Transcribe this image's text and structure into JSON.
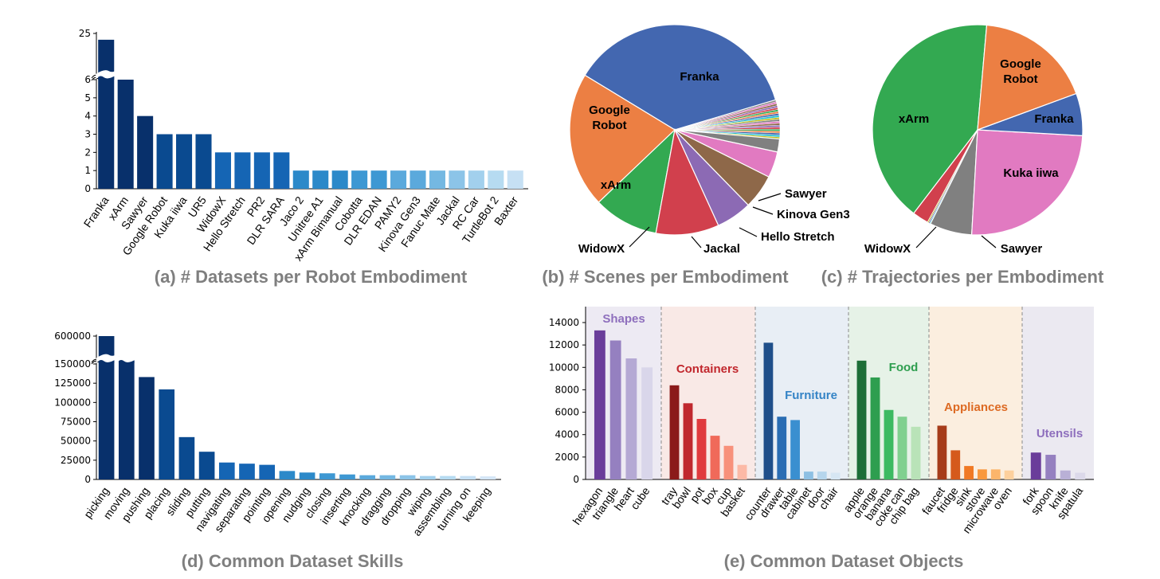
{
  "chart_data": [
    {
      "id": "a",
      "type": "bar",
      "title": "(a) # Datasets per Robot Embodiment",
      "categories": [
        "Franka",
        "xArm",
        "Sawyer",
        "Google Robot",
        "Kuka iiwa",
        "UR5",
        "WidowX",
        "Hello Stretch",
        "PR2",
        "DLR SARA",
        "Jaco 2",
        "Unitree A1",
        "xArm Bimanual",
        "Cobotta",
        "DLR EDAN",
        "PAMY2",
        "Kinova Gen3",
        "Fanuc Mate",
        "Jackal",
        "RC Car",
        "TurtleBot 2",
        "Baxter"
      ],
      "values": [
        22,
        6,
        4,
        3,
        3,
        3,
        2,
        2,
        2,
        2,
        1,
        1,
        1,
        1,
        1,
        1,
        1,
        1,
        1,
        1,
        1,
        1
      ],
      "yticks": [
        "0",
        "1",
        "2",
        "3",
        "4",
        "5",
        "6",
        "25"
      ],
      "axis_break": true,
      "colors": [
        "#08306b",
        "#08306b",
        "#08306b",
        "#0a4a90",
        "#0a4a90",
        "#0a4a90",
        "#1565b4",
        "#1565b4",
        "#1565b4",
        "#1565b4",
        "#2c89c9",
        "#2c89c9",
        "#2c89c9",
        "#3e98d3",
        "#3e98d3",
        "#5ba9dc",
        "#5ba9dc",
        "#74b8e2",
        "#8cc4e8",
        "#a2d0ed",
        "#b6dbf1",
        "#c6e0f4"
      ]
    },
    {
      "id": "b",
      "type": "pie",
      "title": "(b) # Scenes per Embodiment",
      "labels": [
        "Franka",
        "Google Robot",
        "xArm",
        "WidowX",
        "Jackal",
        "Hello Stretch",
        "Kinova Gen3",
        "Sawyer"
      ],
      "values": [
        36.7,
        20.8,
        10.0,
        9.7,
        5.5,
        5.3,
        4.0,
        2.0
      ],
      "colors": [
        "#4367b0",
        "#ec7f43",
        "#33a951",
        "#d1404d",
        "#8c6ab4",
        "#8e6849",
        "#e17ac1",
        "#808080"
      ],
      "other_slices": {
        "total": 6.0,
        "colors": [
          "#bdbd22",
          "#1ebecf",
          "#4367b0",
          "#ec7f43",
          "#33a951",
          "#d1404d",
          "#8c6ab4",
          "#8e6849",
          "#e17ac1",
          "#808080",
          "#bdbd22",
          "#1ebecf",
          "#4367b0",
          "#ec7f43",
          "#33a951",
          "#d1404d",
          "#8c6ab4",
          "#8e6849",
          "#e17ac1",
          "#808080"
        ]
      }
    },
    {
      "id": "c",
      "type": "pie",
      "title": "(c) # Trajectories per Embodiment",
      "labels": [
        "Google Robot",
        "Franka",
        "Kuka iiwa",
        "Sawyer",
        "WidowX",
        "xArm"
      ],
      "values": [
        18.0,
        6.5,
        25.0,
        6.5,
        2.5,
        41.0
      ],
      "colors": [
        "#ec7f43",
        "#4367b0",
        "#e17ac1",
        "#808080",
        "#d1404d",
        "#33a951"
      ],
      "other_slices": {
        "total": 0.5,
        "colors": [
          "#bdbd22",
          "#8c6ab4",
          "#1ebecf"
        ]
      }
    },
    {
      "id": "d",
      "type": "bar",
      "title": "(d) Common Dataset Skills",
      "categories": [
        "picking",
        "moving",
        "pushing",
        "placing",
        "sliding",
        "putting",
        "navigating",
        "separating",
        "pointing",
        "opening",
        "nudging",
        "closing",
        "inserting",
        "knocking",
        "dragging",
        "dropping",
        "wiping",
        "assembling",
        "turning on",
        "keeping"
      ],
      "values": [
        650000,
        157000,
        133000,
        117000,
        55000,
        36000,
        22000,
        20500,
        19000,
        11000,
        9000,
        8000,
        6500,
        5500,
        5500,
        5500,
        4500,
        4500,
        4500,
        4000
      ],
      "yticks": [
        "0",
        "25000",
        "50000",
        "75000",
        "100000",
        "125000",
        "150000",
        "600000"
      ],
      "axis_break": true,
      "colors": [
        "#08306b",
        "#08306b",
        "#08306b",
        "#0a4a90",
        "#0a4a90",
        "#0a4a90",
        "#1565b4",
        "#1565b4",
        "#1565b4",
        "#2c89c9",
        "#2c89c9",
        "#3e98d3",
        "#3e98d3",
        "#5ba9dc",
        "#74b8e2",
        "#8cc4e8",
        "#a2d0ed",
        "#b6dbf1",
        "#c6e0f4",
        "#d4e6f6"
      ]
    },
    {
      "id": "e",
      "type": "bar",
      "title": "(e) Common Dataset Objects",
      "ylim": [
        0,
        14000
      ],
      "yticks": [
        "0",
        "2000",
        "4000",
        "6000",
        "8000",
        "10000",
        "12000",
        "14000"
      ],
      "groups": [
        {
          "name": "Shapes",
          "label_color": "#8e6fbd",
          "bg": "#edeaf3",
          "categories": [
            "hexagon",
            "triangle",
            "heart",
            "cube"
          ],
          "values": [
            13300,
            12400,
            10800,
            10000
          ],
          "colors": [
            "#6a3d9a",
            "#9580c0",
            "#b5a9d4",
            "#d9d6ea"
          ]
        },
        {
          "name": "Containers",
          "label_color": "#c1272d",
          "bg": "#f9e9e6",
          "categories": [
            "tray",
            "bowl",
            "pot",
            "box",
            "cup",
            "basket"
          ],
          "values": [
            8400,
            6800,
            5400,
            3900,
            3000,
            1300
          ],
          "colors": [
            "#8b1a1a",
            "#c0282e",
            "#e03a3e",
            "#f06a5a",
            "#f8917b",
            "#fcb9a6"
          ]
        },
        {
          "name": "Furniture",
          "label_color": "#3584c6",
          "bg": "#e8eef5",
          "categories": [
            "counter",
            "drawer",
            "table",
            "cabinet",
            "door",
            "chair"
          ],
          "values": [
            12200,
            5600,
            5300,
            700,
            700,
            600
          ],
          "colors": [
            "#1f4f8a",
            "#2a6db3",
            "#3a8fd0",
            "#8dbfe3",
            "#b6d5ec",
            "#d6e6f3"
          ]
        },
        {
          "name": "Food",
          "label_color": "#2e9e4f",
          "bg": "#e6f2e7",
          "categories": [
            "apple",
            "orange",
            "banana",
            "coke can",
            "chip bag"
          ],
          "values": [
            10600,
            9100,
            6200,
            5600,
            4700
          ],
          "colors": [
            "#1d6e37",
            "#2e9e4f",
            "#3dba62",
            "#80d08f",
            "#b9e3b8"
          ]
        },
        {
          "name": "Appliances",
          "label_color": "#dd6a23",
          "bg": "#fbeedf",
          "categories": [
            "faucet",
            "fridge",
            "sink",
            "stove",
            "microwave",
            "oven"
          ],
          "values": [
            4800,
            2600,
            1200,
            900,
            900,
            800
          ],
          "colors": [
            "#a63c1a",
            "#d55a1c",
            "#f07924",
            "#f8983e",
            "#fbb56b",
            "#fdd09d"
          ]
        },
        {
          "name": "Utensils",
          "label_color": "#8e6fbd",
          "bg": "#ebe9f1",
          "categories": [
            "fork",
            "spoon",
            "knife",
            "spatula"
          ],
          "values": [
            2400,
            2200,
            800,
            600
          ],
          "colors": [
            "#6a3d9a",
            "#9580c0",
            "#b9b0d6",
            "#dcd9ea"
          ]
        }
      ]
    }
  ]
}
